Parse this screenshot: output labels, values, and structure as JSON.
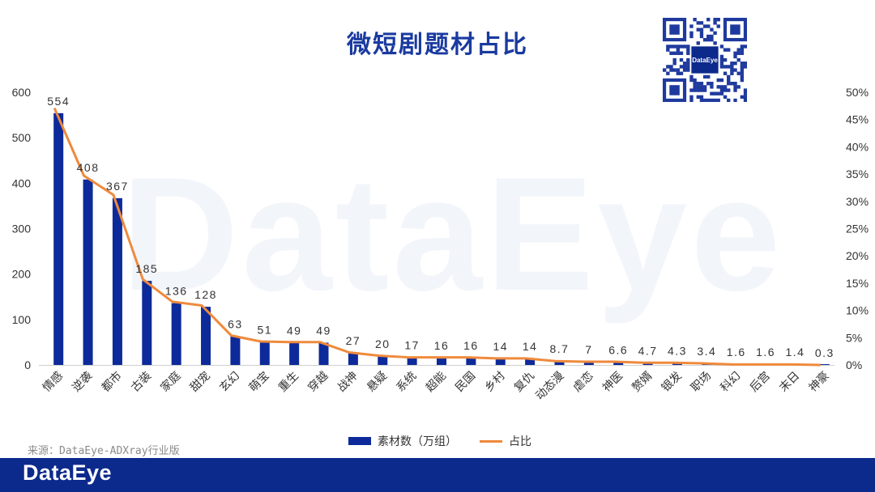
{
  "header": {
    "title": "微短剧题材占比"
  },
  "qr": {
    "center_text": "DataEye"
  },
  "watermark_text": "DataEye",
  "source_note": "来源：DataEye-ADXray行业版",
  "footer": {
    "logo": "DataEye"
  },
  "colors": {
    "bar": "#0d2a9a",
    "line": "#ef8a3c",
    "footer": "#0c2a8c",
    "title": "#1a3aa0"
  },
  "chart_data": {
    "type": "bar",
    "title": "微短剧题材占比",
    "categories": [
      "情感",
      "逆袭",
      "都市",
      "古装",
      "家庭",
      "甜宠",
      "玄幻",
      "萌宝",
      "重生",
      "穿越",
      "战神",
      "悬疑",
      "系统",
      "超能",
      "民国",
      "乡村",
      "复仇",
      "动态漫",
      "虐恋",
      "神医",
      "赘婿",
      "银发",
      "职场",
      "科幻",
      "后宫",
      "末日",
      "神豪"
    ],
    "data_labels": [
      "554",
      "408",
      "367",
      "185",
      "136",
      "128",
      "63",
      "51",
      "49",
      "49",
      "27",
      "20",
      "17",
      "16",
      "16",
      "14",
      "14",
      "8.7",
      "7",
      "6.6",
      "4.7",
      "4.3",
      "3.4",
      "1.6",
      "1.6",
      "1.4",
      "0.3"
    ],
    "series": [
      {
        "name": "素材数（万组）",
        "type": "bar",
        "axis": "left",
        "values": [
          554,
          408,
          367,
          185,
          136,
          128,
          63,
          51,
          49,
          49,
          27,
          20,
          17,
          16,
          16,
          14,
          14,
          8.7,
          7,
          6.6,
          4.7,
          4.3,
          3.4,
          1.6,
          1.6,
          1.4,
          0.3
        ]
      },
      {
        "name": "占比",
        "type": "line",
        "axis": "right",
        "values": [
          47.1,
          34.7,
          31.2,
          15.7,
          11.6,
          10.9,
          5.4,
          4.3,
          4.2,
          4.2,
          2.3,
          1.7,
          1.4,
          1.4,
          1.4,
          1.2,
          1.2,
          0.7,
          0.6,
          0.6,
          0.4,
          0.4,
          0.3,
          0.1,
          0.1,
          0.1,
          0.0
        ]
      }
    ],
    "y_left": {
      "min": 0,
      "max": 600,
      "ticks": [
        "0",
        "100",
        "200",
        "300",
        "400",
        "500",
        "600"
      ]
    },
    "y_right": {
      "min": 0,
      "max": 50,
      "ticks": [
        "0%",
        "5%",
        "10%",
        "15%",
        "20%",
        "25%",
        "30%",
        "35%",
        "40%",
        "45%",
        "50%"
      ]
    },
    "grid": false,
    "legend_position": "bottom"
  }
}
